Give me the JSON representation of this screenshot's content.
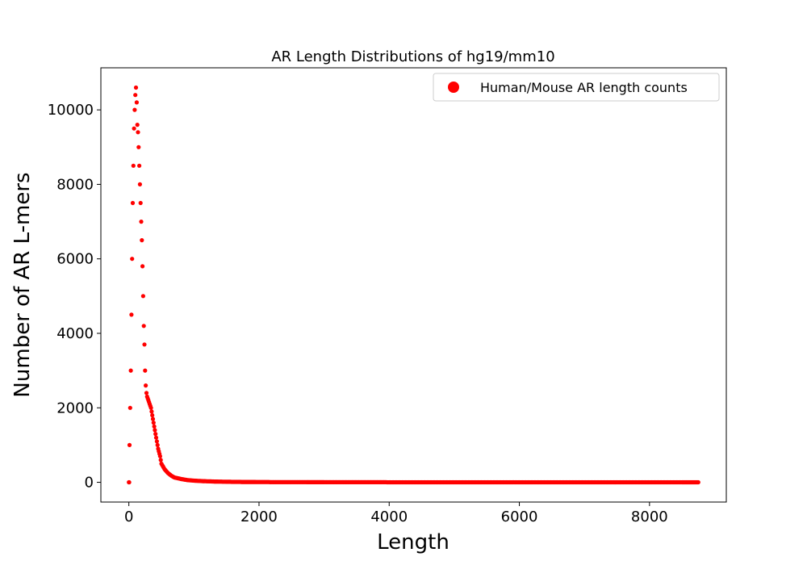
{
  "colors": {
    "series": "#ff0000",
    "axis": "#000000",
    "legend_border": "#cccccc"
  },
  "chart_data": {
    "type": "scatter",
    "title": "AR Length Distributions of hg19/mm10",
    "xlabel": "Length",
    "ylabel": "Number of AR L-mers",
    "xlim": [
      -430,
      9180
    ],
    "ylim": [
      -530,
      11130
    ],
    "xticks": [
      0,
      2000,
      4000,
      6000,
      8000
    ],
    "xtick_labels": [
      "0",
      "2000",
      "4000",
      "6000",
      "8000"
    ],
    "yticks": [
      0,
      2000,
      4000,
      6000,
      8000,
      10000
    ],
    "ytick_labels": [
      "0",
      "2000",
      "4000",
      "6000",
      "8000",
      "10000"
    ],
    "grid": false,
    "legend_position": "top-right",
    "series": [
      {
        "name": "Human/Mouse AR length counts",
        "color": "#ff0000",
        "marker": "circle",
        "x": [
          0,
          5,
          10,
          20,
          30,
          40,
          50,
          60,
          70,
          80,
          90,
          100,
          110,
          120,
          130,
          140,
          150,
          160,
          170,
          180,
          190,
          200,
          210,
          220,
          230,
          240,
          250,
          260,
          270,
          280,
          300,
          320,
          340,
          360,
          380,
          400,
          420,
          450,
          480,
          500,
          550,
          600,
          650,
          700,
          800,
          900,
          1000,
          1100,
          1200,
          1300,
          1400,
          1500,
          1600,
          1800,
          2000,
          2200,
          2500,
          2800,
          3000,
          3500,
          4000,
          4500,
          5000,
          5500,
          6000,
          6500,
          7000,
          7500,
          8000,
          8500,
          8750
        ],
        "y": [
          0,
          0,
          1000,
          2000,
          3000,
          4500,
          6000,
          7500,
          8500,
          9500,
          10000,
          10400,
          10600,
          10200,
          9600,
          9400,
          9000,
          8500,
          8000,
          7500,
          7000,
          6500,
          5800,
          5000,
          4200,
          3700,
          3000,
          2600,
          2400,
          2300,
          2200,
          2100,
          2000,
          1800,
          1600,
          1400,
          1200,
          900,
          700,
          500,
          350,
          250,
          180,
          130,
          90,
          60,
          45,
          35,
          28,
          22,
          18,
          15,
          12,
          10,
          8,
          6,
          5,
          4,
          3,
          3,
          2,
          2,
          1,
          1,
          1,
          1,
          1,
          1,
          0,
          0,
          0
        ]
      }
    ]
  }
}
